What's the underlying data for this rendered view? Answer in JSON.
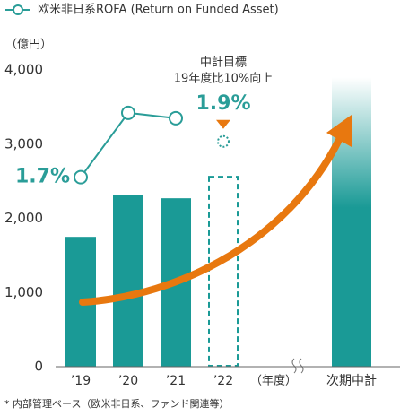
{
  "chart_data": {
    "type": "bar",
    "legend": "欧米非日系ROFA (Return on Funded Asset)",
    "y_unit": "（億円）",
    "x_unit": "（年度）",
    "footnote": "* 内部管理ベース（欧米非日系、ファンド関連等）",
    "categories": [
      "’19",
      "’20",
      "’21",
      "’22",
      "次期中計"
    ],
    "values": [
      1750,
      2320,
      2270,
      2560,
      3900
    ],
    "bar_styles": [
      "solid",
      "solid",
      "solid",
      "dashed",
      "gradient"
    ],
    "color": "#1a9a96",
    "ylim": [
      0,
      4000
    ],
    "yticks": [
      0,
      {
        "value": 1000,
        "label": "1,000"
      },
      {
        "value": 2000,
        "label": "2,000"
      },
      {
        "value": 3000,
        "label": "3,000"
      },
      {
        "value": 4000,
        "label": "4,000"
      }
    ],
    "y2lim": [
      0.64,
      2.3
    ],
    "series": [
      {
        "name": "欧米非日系ROFA (Return on Funded Asset)",
        "color": "#2a9d98",
        "axis": "y2",
        "values": [
          1.7,
          2.06,
          2.03,
          null,
          null
        ],
        "value_labels": [
          "1.7%",
          null,
          null,
          null,
          null
        ]
      }
    ],
    "target": {
      "title": "中計目標",
      "subtitle": "19年度比10%向上",
      "value": 1.9,
      "label": "1.9%"
    },
    "arrow_color": "#e8780f"
  }
}
